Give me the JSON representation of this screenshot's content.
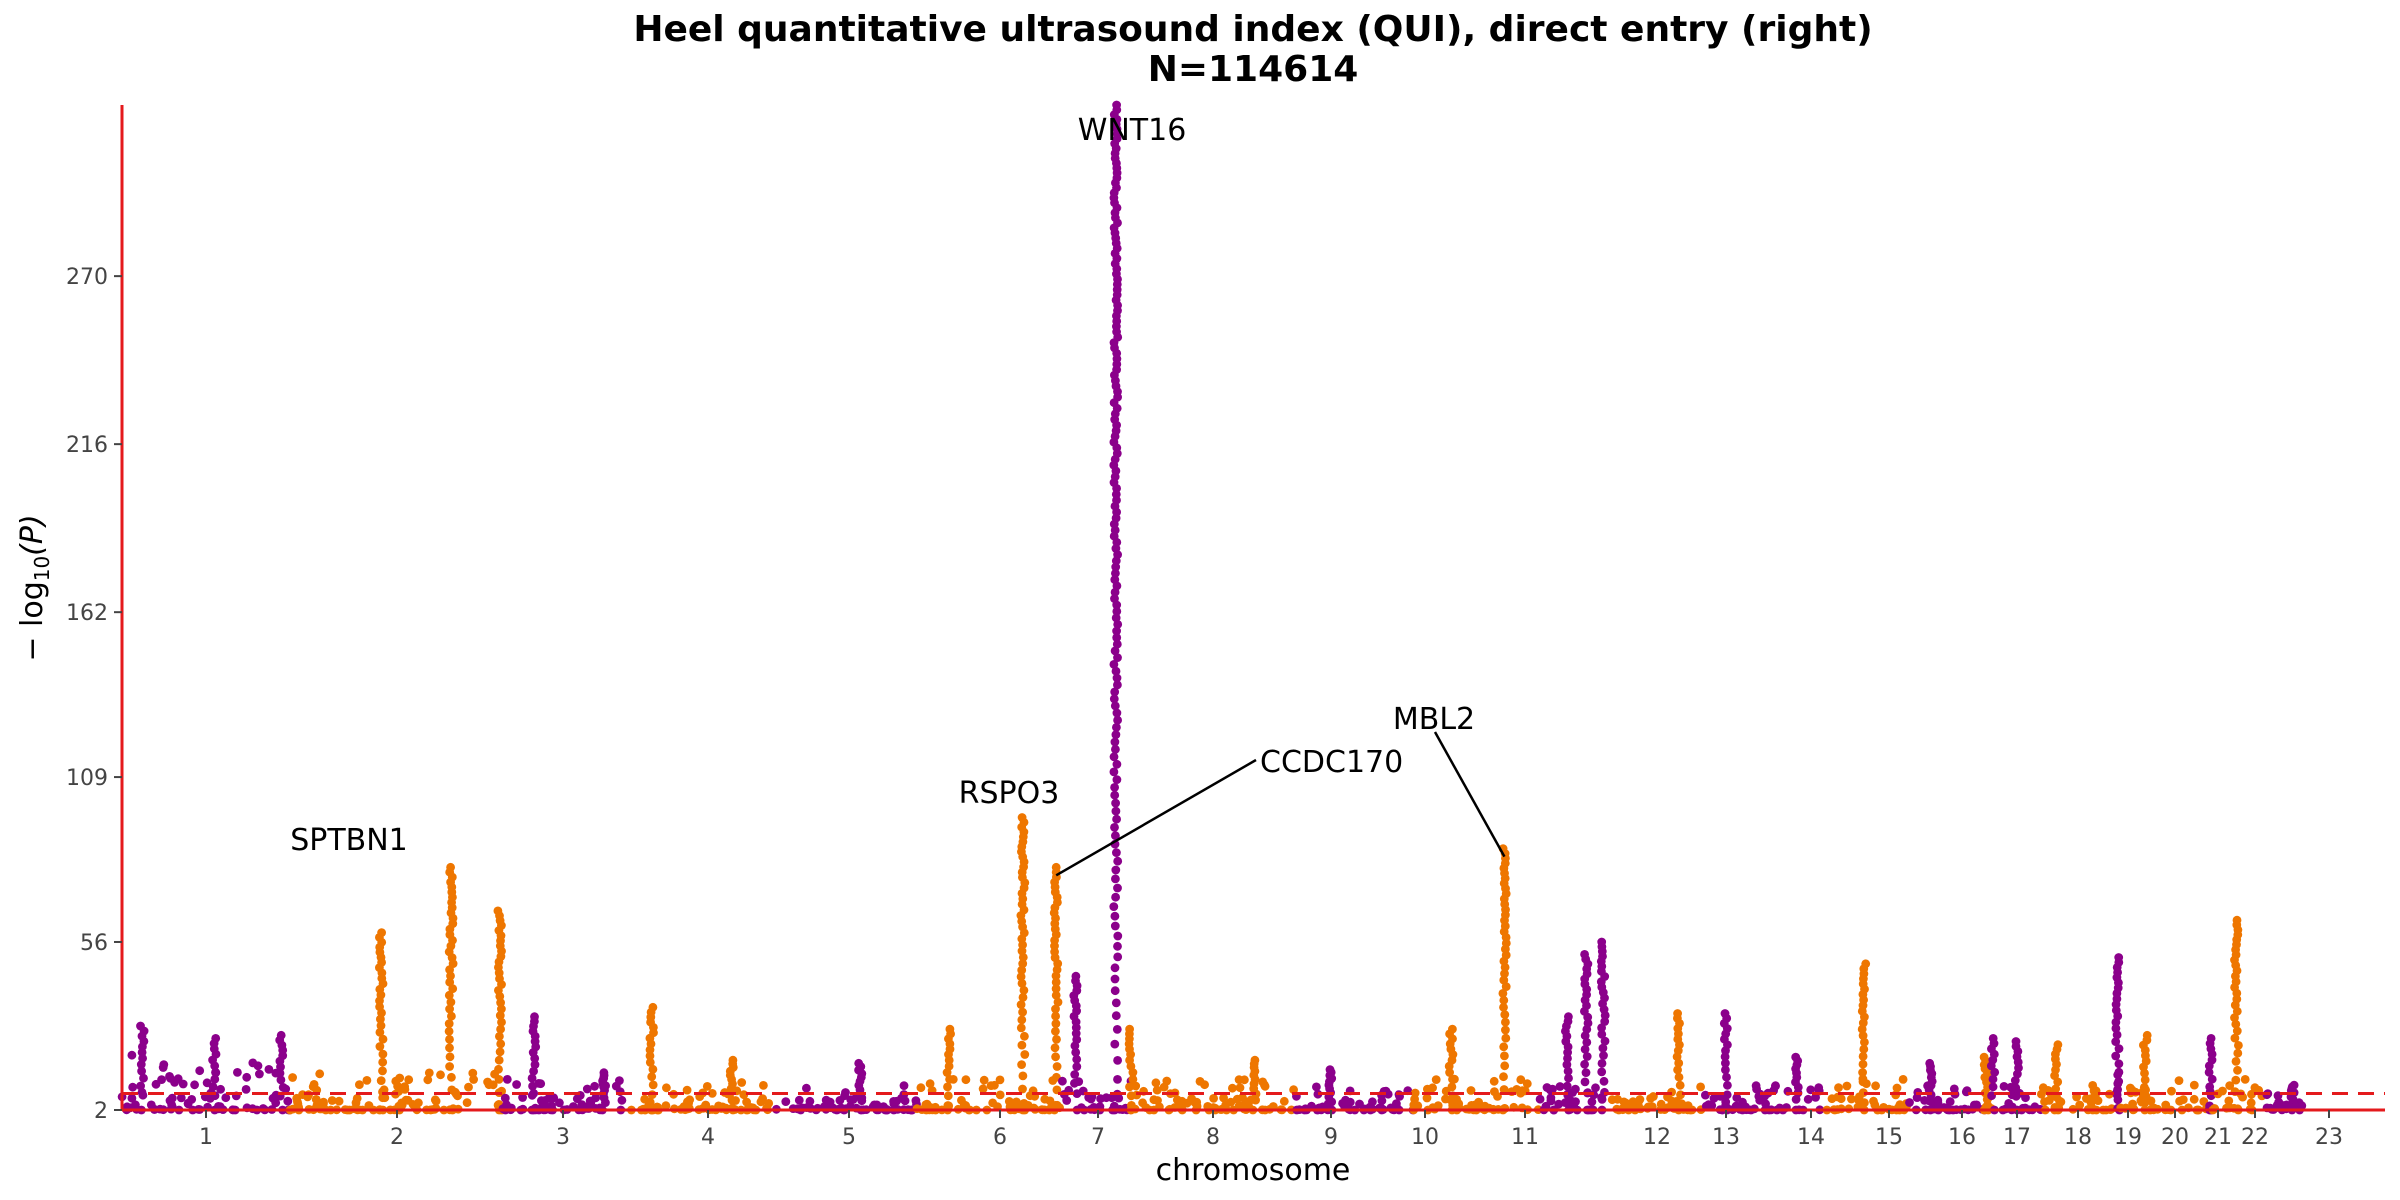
{
  "chart_data": {
    "type": "scatter",
    "subtype": "manhattan",
    "title": "Heel quantitative ultrasound index (QUI), direct entry (right)",
    "subtitle": "N=114614",
    "xlabel": "chromosome",
    "ylabel": "− log10(P)",
    "ylabel_base": "− log",
    "ylabel_sub": "10",
    "ylabel_arg": "(P)",
    "ylim": [
      2,
      325
    ],
    "yticks": [
      2,
      56,
      109,
      162,
      216,
      270
    ],
    "threshold": 7.3,
    "colors": {
      "odd_chromosomes": "#8B008B",
      "even_chromosomes": "#EE7600",
      "threshold_line": "#E41A1C",
      "axis_line": "#E41A1C",
      "leader_line": "#000000"
    },
    "chromosomes": [
      {
        "label": "1",
        "baseline": 20,
        "peaks": [
          {
            "at": 0.12,
            "y": 29
          },
          {
            "at": 0.55,
            "y": 25
          },
          {
            "at": 0.95,
            "y": 26
          }
        ]
      },
      {
        "label": "2",
        "baseline": 14,
        "peaks": [
          {
            "at": 0.43,
            "y": 59
          },
          {
            "at": 0.76,
            "y": 80
          },
          {
            "at": 0.99,
            "y": 66
          }
        ]
      },
      {
        "label": "3",
        "baseline": 12,
        "peaks": [
          {
            "at": 0.25,
            "y": 32
          },
          {
            "at": 0.8,
            "y": 14
          }
        ]
      },
      {
        "label": "4",
        "baseline": 12,
        "peaks": [
          {
            "at": 0.15,
            "y": 35
          },
          {
            "at": 0.7,
            "y": 18
          }
        ]
      },
      {
        "label": "5",
        "baseline": 10,
        "peaks": [
          {
            "at": 0.6,
            "y": 17
          }
        ]
      },
      {
        "label": "6",
        "baseline": 12,
        "peaks": [
          {
            "at": 0.22,
            "y": 28
          },
          {
            "at": 0.73,
            "y": 96
          },
          {
            "at": 0.96,
            "y": 80
          }
        ]
      },
      {
        "label": "7",
        "baseline": 12,
        "peaks": [
          {
            "at": 0.2,
            "y": 45
          },
          {
            "at": 0.78,
            "y": 325
          }
        ]
      },
      {
        "label": "8",
        "baseline": 12,
        "peaks": [
          {
            "at": 0.0,
            "y": 28
          },
          {
            "at": 0.75,
            "y": 18
          }
        ]
      },
      {
        "label": "9",
        "baseline": 10,
        "peaks": [
          {
            "at": 0.3,
            "y": 15
          }
        ]
      },
      {
        "label": "10",
        "baseline": 12,
        "peaks": [
          {
            "at": 0.3,
            "y": 28
          },
          {
            "at": 0.72,
            "y": 86
          }
        ]
      },
      {
        "label": "11",
        "baseline": 14,
        "peaks": [
          {
            "at": 0.4,
            "y": 32
          },
          {
            "at": 0.68,
            "y": 52
          },
          {
            "at": 0.93,
            "y": 56
          }
        ]
      },
      {
        "label": "12",
        "baseline": 12,
        "peaks": [
          {
            "at": 0.75,
            "y": 33
          }
        ]
      },
      {
        "label": "13",
        "baseline": 10,
        "peaks": [
          {
            "at": 0.2,
            "y": 33
          },
          {
            "at": 0.8,
            "y": 19
          }
        ]
      },
      {
        "label": "14",
        "baseline": 12,
        "peaks": [
          {
            "at": 0.5,
            "y": 49
          }
        ]
      },
      {
        "label": "15",
        "baseline": 10,
        "peaks": [
          {
            "at": 0.3,
            "y": 17
          }
        ]
      },
      {
        "label": "16",
        "baseline": 10,
        "peaks": [
          {
            "at": 0.1,
            "y": 19
          }
        ]
      },
      {
        "label": "17",
        "baseline": 12,
        "peaks": [
          {
            "at": 0.0,
            "y": 25
          },
          {
            "at": 0.5,
            "y": 24
          }
        ]
      },
      {
        "label": "18",
        "baseline": 10,
        "peaks": [
          {
            "at": 0.2,
            "y": 23
          }
        ]
      },
      {
        "label": "19",
        "baseline": 14,
        "peaks": [
          {
            "at": 0.5,
            "y": 51
          }
        ]
      },
      {
        "label": "20",
        "baseline": 12,
        "peaks": [
          {
            "at": 0.3,
            "y": 26
          }
        ]
      },
      {
        "label": "21",
        "baseline": 10,
        "peaks": [
          {
            "at": 0.6,
            "y": 25
          }
        ]
      },
      {
        "label": "22",
        "baseline": 12,
        "peaks": [
          {
            "at": 0.5,
            "y": 63
          }
        ]
      },
      {
        "label": "23",
        "baseline": 8,
        "peaks": [
          {
            "at": 0.7,
            "y": 10
          }
        ]
      }
    ],
    "annotations": [
      {
        "gene": "WNT16",
        "chromosome": "7",
        "at": 0.78,
        "y": 325
      },
      {
        "gene": "SPTBN1",
        "chromosome": "2",
        "at": 0.76,
        "y": 80
      },
      {
        "gene": "RSPO3",
        "chromosome": "6",
        "at": 0.73,
        "y": 96
      },
      {
        "gene": "CCDC170",
        "chromosome": "6",
        "at": 0.96,
        "y": 80
      },
      {
        "gene": "MBL2",
        "chromosome": "10",
        "at": 0.72,
        "y": 86
      }
    ],
    "grid": false,
    "legend": "none"
  }
}
